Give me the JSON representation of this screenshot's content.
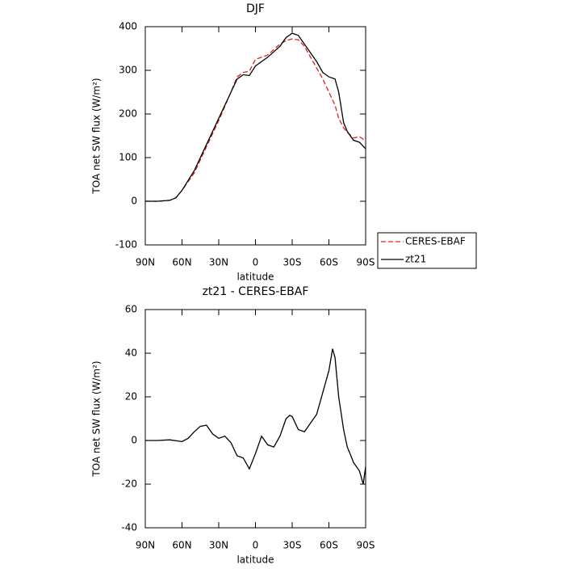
{
  "chart_data": [
    {
      "type": "line",
      "title": "DJF",
      "xlabel": "latitude",
      "ylabel": "TOA net SW flux (W/m²)",
      "x": [
        90,
        80,
        70,
        65,
        60,
        50,
        40,
        30,
        20,
        15,
        10,
        5,
        0,
        -10,
        -20,
        -25,
        -30,
        -35,
        -40,
        -50,
        -55,
        -60,
        -65,
        -68,
        -72,
        -75,
        -80,
        -85,
        -90
      ],
      "series": [
        {
          "name": "CERES-EBAF",
          "color": "#e0201b",
          "linestyle": "dashed",
          "values": [
            0,
            0,
            2,
            8,
            25,
            65,
            125,
            185,
            250,
            285,
            295,
            298,
            325,
            335,
            360,
            368,
            372,
            370,
            355,
            305,
            280,
            250,
            220,
            190,
            168,
            158,
            145,
            148,
            138
          ]
        },
        {
          "name": "zt21",
          "color": "#000000",
          "linestyle": "solid",
          "values": [
            0,
            0,
            2,
            8,
            25,
            70,
            130,
            190,
            250,
            280,
            290,
            288,
            310,
            330,
            355,
            375,
            385,
            380,
            360,
            320,
            295,
            285,
            280,
            250,
            180,
            160,
            140,
            135,
            120
          ]
        }
      ],
      "xlim": [
        90,
        -90
      ],
      "xticks": [
        {
          "value": 90,
          "label": "90N"
        },
        {
          "value": 60,
          "label": "60N"
        },
        {
          "value": 30,
          "label": "30N"
        },
        0,
        {
          "value": -30,
          "label": "30S"
        },
        {
          "value": -60,
          "label": "60S"
        },
        {
          "value": -90,
          "label": "90S"
        }
      ],
      "ylim": [
        -100,
        400
      ],
      "yticks": [
        -100,
        0,
        100,
        200,
        300,
        400
      ],
      "legend": "right"
    },
    {
      "type": "line",
      "title": "zt21 - CERES-EBAF",
      "xlabel": "latitude",
      "ylabel": "TOA net SW flux (W/m²)",
      "x": [
        90,
        80,
        70,
        60,
        55,
        50,
        45,
        40,
        35,
        30,
        25,
        20,
        15,
        10,
        5,
        0,
        -5,
        -10,
        -15,
        -20,
        -25,
        -28,
        -30,
        -35,
        -40,
        -45,
        -50,
        -55,
        -60,
        -63,
        -65,
        -68,
        -72,
        -75,
        -78,
        -80,
        -85,
        -88,
        -90
      ],
      "series": [
        {
          "name": "zt21",
          "color": "#000000",
          "linestyle": "solid",
          "values": [
            0,
            0,
            0.3,
            -0.5,
            1,
            4,
            6.5,
            7,
            3,
            1,
            2,
            -1,
            -7,
            -8,
            -13,
            -6,
            2,
            -2,
            -3,
            2,
            10,
            11.5,
            11,
            5,
            4,
            8,
            12,
            22,
            32,
            42,
            38,
            20,
            5,
            -3,
            -7,
            -10,
            -14,
            -20,
            -12
          ]
        }
      ],
      "xlim": [
        90,
        -90
      ],
      "xticks": [
        {
          "value": 90,
          "label": "90N"
        },
        {
          "value": 60,
          "label": "60N"
        },
        {
          "value": 30,
          "label": "30N"
        },
        0,
        {
          "value": -30,
          "label": "30S"
        },
        {
          "value": -60,
          "label": "60S"
        },
        {
          "value": -90,
          "label": "90S"
        }
      ],
      "ylim": [
        -40,
        60
      ],
      "yticks": [
        -40,
        -20,
        0,
        20,
        40,
        60
      ]
    }
  ]
}
